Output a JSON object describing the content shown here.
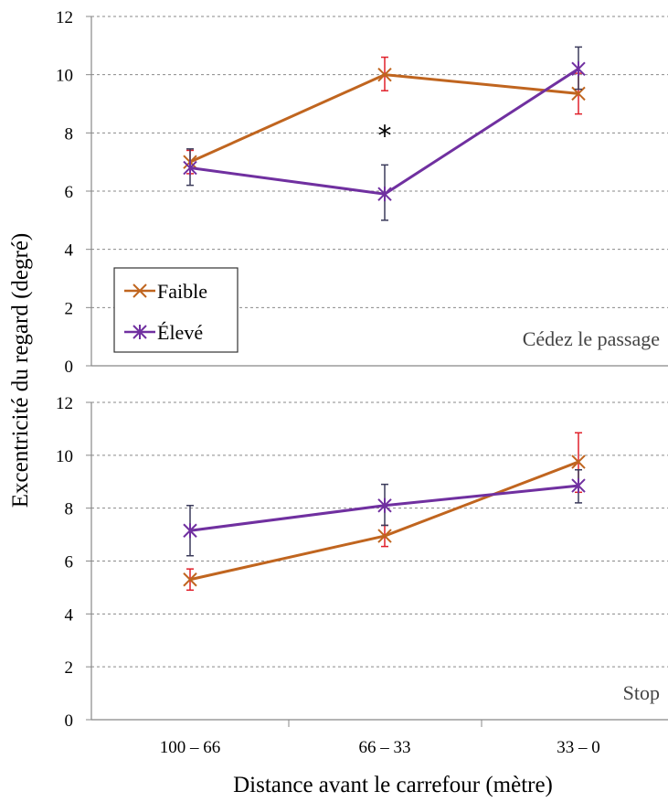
{
  "chart_data": {
    "type": "line",
    "ylabel": "Excentricité du regard (degré)",
    "xlabel": "Distance avant le carrefour (mètre)",
    "categories": [
      "100 – 66",
      "66 – 33",
      "33 – 0"
    ],
    "ylim": [
      0,
      12
    ],
    "yticks": [
      "0",
      "2",
      "4",
      "6",
      "8",
      "10",
      "12"
    ],
    "grid": "horizontal dashed",
    "legend": {
      "placement": "bottom-left of top panel",
      "entries": [
        "Faible",
        "Élevé"
      ]
    },
    "colors": {
      "faible": "#C0651F",
      "eleve": "#7030A0",
      "faible_errbar": "#E0202A",
      "eleve_errbar": "#3A3A5A"
    },
    "panels": [
      {
        "label": "Cédez le passage",
        "annotation": "*",
        "annotation_category": "66 – 33",
        "annotation_y": 7.9,
        "series": [
          {
            "name": "Faible",
            "marker": "x",
            "values": [
              7.0,
              10.0,
              9.35
            ],
            "err_low": [
              6.6,
              9.45,
              8.65
            ],
            "err_high": [
              7.4,
              10.6,
              10.05
            ]
          },
          {
            "name": "Élevé",
            "marker": "asterisk",
            "values": [
              6.8,
              5.9,
              10.2
            ],
            "err_low": [
              6.2,
              5.0,
              9.5
            ],
            "err_high": [
              7.45,
              6.9,
              10.95
            ]
          }
        ]
      },
      {
        "label": "Stop",
        "series": [
          {
            "name": "Faible",
            "marker": "x",
            "values": [
              5.3,
              6.95,
              9.75
            ],
            "err_low": [
              4.9,
              6.55,
              8.6
            ],
            "err_high": [
              5.7,
              7.35,
              10.85
            ]
          },
          {
            "name": "Élevé",
            "marker": "asterisk",
            "values": [
              7.15,
              8.1,
              8.85
            ],
            "err_low": [
              6.2,
              7.35,
              8.2
            ],
            "err_high": [
              8.1,
              8.9,
              9.45
            ]
          }
        ]
      }
    ]
  }
}
